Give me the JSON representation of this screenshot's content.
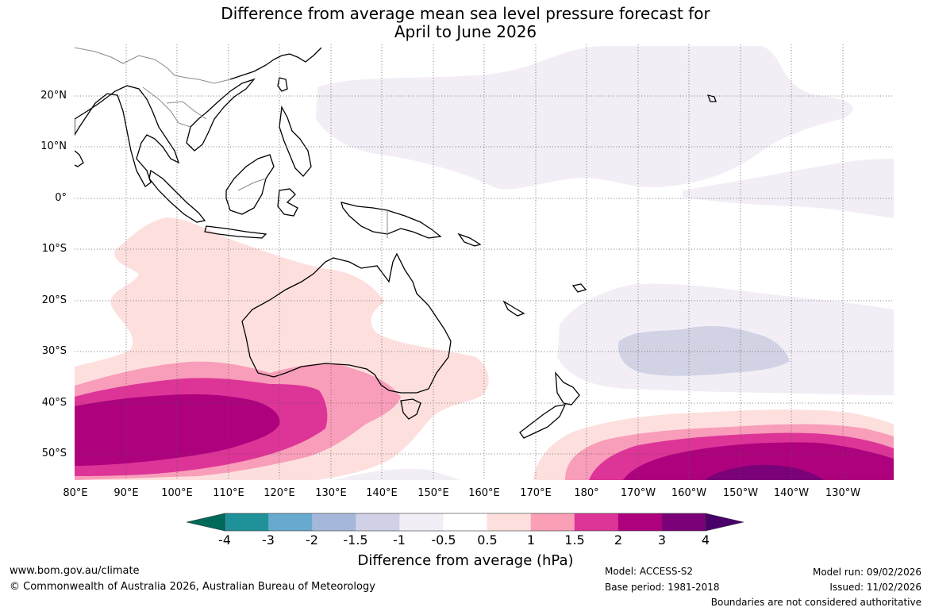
{
  "title": {
    "line1": "Difference from average mean sea level pressure forecast for",
    "line2": "April to June 2026"
  },
  "map": {
    "lat_labels": [
      "20°N",
      "10°N",
      "0°",
      "10°S",
      "20°S",
      "30°S",
      "40°S",
      "50°S"
    ],
    "lon_labels": [
      "80°E",
      "90°E",
      "100°E",
      "110°E",
      "120°E",
      "130°E",
      "140°E",
      "150°E",
      "160°E",
      "170°E",
      "180°",
      "170°W",
      "160°W",
      "150°W",
      "140°W",
      "130°W"
    ],
    "lat_range": [
      -55,
      30
    ],
    "lon_range": [
      80,
      240
    ],
    "colors": {
      "neg_0_5": "#f3eef6",
      "neg_1": "#d1d3e5",
      "pos_0_5": "#fde0de",
      "pos_1": "#f89dba",
      "pos_1_5": "#dd3497",
      "pos_2": "#ae017e",
      "pos_3": "#7a0177",
      "coast": "#000000",
      "border": "#8a8a8a",
      "grid": "#555555"
    }
  },
  "colorbar": {
    "tick_labels": [
      "-4",
      "-3",
      "-2",
      "-1.5",
      "-1",
      "-0.5",
      "0.5",
      "1",
      "1.5",
      "2",
      "3",
      "4"
    ],
    "colors": [
      "#006a5a",
      "#1f9198",
      "#67a9cf",
      "#a6b8da",
      "#d0d1e6",
      "#f3eef6",
      "#ffffff",
      "#fde0dd",
      "#fa9fb5",
      "#dd3497",
      "#ae017e",
      "#7a0177",
      "#49006a"
    ],
    "title": "Difference from average (hPa)"
  },
  "footer": {
    "website": "www.bom.gov.au/climate",
    "copyright": "© Commonwealth of Australia 2026, Australian Bureau of Meteorology",
    "model": "Model: ACCESS-S2",
    "base_period": "Base period: 1981-2018",
    "model_run": "Model run: 09/02/2026",
    "issued": "Issued: 11/02/2026",
    "disclaimer": "Boundaries are not considered authoritative"
  }
}
